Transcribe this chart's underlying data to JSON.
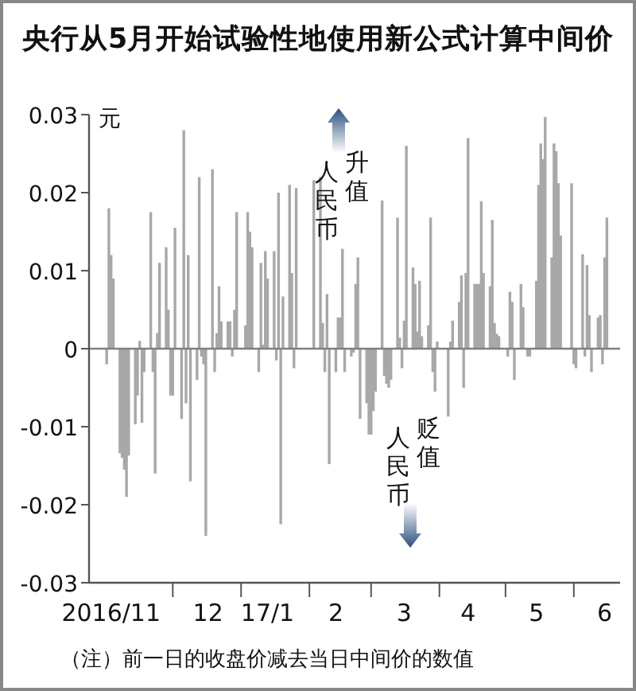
{
  "chart_data": {
    "type": "bar",
    "title": "央行从5月开始试验性地使用新公式计算中间价",
    "ylabel": "元",
    "annotations": [
      "人民币升值",
      "人民币贬值",
      "（注）前一日的收盘价减去当日中间价的数值"
    ],
    "x": [
      "2016-11-01",
      "2016-11-02",
      "2016-11-03",
      "2016-11-04",
      "2016-11-07",
      "2016-11-08",
      "2016-11-09",
      "2016-11-10",
      "2016-11-11",
      "2016-11-14",
      "2016-11-15",
      "2016-11-16",
      "2016-11-17",
      "2016-11-18",
      "2016-11-21",
      "2016-11-22",
      "2016-11-23",
      "2016-11-24",
      "2016-11-25",
      "2016-11-28",
      "2016-11-29",
      "2016-11-30",
      "2016-12-01",
      "2016-12-02",
      "2016-12-05",
      "2016-12-06",
      "2016-12-07",
      "2016-12-08",
      "2016-12-09",
      "2016-12-12",
      "2016-12-13",
      "2016-12-14",
      "2016-12-15",
      "2016-12-16",
      "2016-12-19",
      "2016-12-20",
      "2016-12-21",
      "2016-12-22",
      "2016-12-23",
      "2016-12-26",
      "2016-12-27",
      "2016-12-28",
      "2016-12-29",
      "2016-12-30",
      "2017-01-03",
      "2017-01-04",
      "2017-01-05",
      "2017-01-06",
      "2017-01-09",
      "2017-01-10",
      "2017-01-11",
      "2017-01-12",
      "2017-01-13",
      "2017-01-16",
      "2017-01-17",
      "2017-01-18",
      "2017-01-19",
      "2017-01-20",
      "2017-01-23",
      "2017-01-24",
      "2017-01-25",
      "2017-01-26",
      "2017-02-03",
      "2017-02-06",
      "2017-02-07",
      "2017-02-08",
      "2017-02-09",
      "2017-02-10",
      "2017-02-13",
      "2017-02-14",
      "2017-02-15",
      "2017-02-16",
      "2017-02-17",
      "2017-02-20",
      "2017-02-21",
      "2017-02-22",
      "2017-02-23",
      "2017-02-24",
      "2017-02-27",
      "2017-02-28",
      "2017-03-01",
      "2017-03-02",
      "2017-03-03",
      "2017-03-06",
      "2017-03-07",
      "2017-03-08",
      "2017-03-09",
      "2017-03-10",
      "2017-03-13",
      "2017-03-14",
      "2017-03-15",
      "2017-03-16",
      "2017-03-17",
      "2017-03-20",
      "2017-03-21",
      "2017-03-22",
      "2017-03-23",
      "2017-03-24",
      "2017-03-27",
      "2017-03-28",
      "2017-03-29",
      "2017-03-30",
      "2017-03-31",
      "2017-04-05",
      "2017-04-06",
      "2017-04-07",
      "2017-04-10",
      "2017-04-11",
      "2017-04-12",
      "2017-04-13",
      "2017-04-14",
      "2017-04-17",
      "2017-04-18",
      "2017-04-19",
      "2017-04-20",
      "2017-04-21",
      "2017-04-24",
      "2017-04-25",
      "2017-04-26",
      "2017-04-27",
      "2017-04-28",
      "2017-05-02",
      "2017-05-03",
      "2017-05-04",
      "2017-05-05",
      "2017-05-08",
      "2017-05-09",
      "2017-05-10",
      "2017-05-11",
      "2017-05-12",
      "2017-05-15",
      "2017-05-16",
      "2017-05-17",
      "2017-05-18",
      "2017-05-19",
      "2017-05-22",
      "2017-05-23",
      "2017-05-24",
      "2017-05-25",
      "2017-05-26",
      "2017-05-31",
      "2017-06-01",
      "2017-06-02",
      "2017-06-05",
      "2017-06-06",
      "2017-06-07",
      "2017-06-08",
      "2017-06-09",
      "2017-06-12",
      "2017-06-13",
      "2017-06-14",
      "2017-06-15",
      "2017-06-16"
    ],
    "values": [
      -0.002,
      0.018,
      0.012,
      0.009,
      -0.0134,
      -0.014,
      -0.0155,
      -0.019,
      -0.0137,
      -0.0097,
      -0.006,
      0.001,
      -0.0095,
      -0.003,
      0.0175,
      -0.003,
      -0.016,
      0.002,
      0.011,
      0.013,
      0.005,
      -0.006,
      -0.006,
      0.0155,
      -0.009,
      0.028,
      -0.007,
      0.012,
      -0.017,
      -0.004,
      0.022,
      -0.001,
      -0.002,
      -0.024,
      0.023,
      -0.003,
      0.002,
      0.008,
      0.0035,
      0.0035,
      0.0035,
      -0.001,
      0.005,
      0.0175,
      0.003,
      0.0175,
      0.015,
      0.013,
      -0.003,
      0.011,
      0.0005,
      0.0125,
      0.009,
      0.0125,
      -0.0015,
      0.02,
      -0.0225,
      0.0067,
      0.021,
      0.0097,
      -0.0025,
      0.0206,
      0.0216,
      0.022,
      0.0033,
      -0.003,
      0.007,
      -0.0148,
      -0.003,
      0.004,
      0.004,
      0.0128,
      -0.003,
      -0.001,
      -0.0005,
      0.0083,
      0.0117,
      -0.009,
      -0.007,
      -0.011,
      -0.011,
      -0.008,
      -0.0055,
      0.019,
      -0.0035,
      -0.0045,
      -0.005,
      -0.004,
      0.0168,
      0.0014,
      -0.0025,
      0.0036,
      0.026,
      0.0104,
      0.0083,
      0.0022,
      0.0087,
      0.0016,
      0.003,
      0.0168,
      -0.003,
      -0.0055,
      0.0009,
      -0.0087,
      0.0009,
      0.0036,
      0.006,
      0.0094,
      -0.005,
      0.0097,
      0.027,
      0.0083,
      0.0083,
      0.0083,
      0.0189,
      0.0097,
      0.008,
      0.0165,
      0.0033,
      0.0019,
      0.0016,
      -0.001,
      0.0073,
      0.006,
      -0.004,
      0.0083,
      0.0053,
      null,
      -0.001,
      -0.001,
      0.0087,
      0.021,
      0.0263,
      0.0243,
      0.0297,
      0.0117,
      0.0263,
      0.0253,
      0.0212,
      0.0145,
      0.0212,
      -0.002,
      -0.0025,
      0.0121,
      -0.001,
      0.0107,
      0.0043,
      -0.003,
      0.004,
      0.0043,
      -0.002,
      0.0117,
      0.0168
    ],
    "color": "#a8a8a8",
    "xlim": [
      "2016-10-24",
      "2017-06-22"
    ],
    "xticks": [
      {
        "value": "2016-11-03",
        "label": "2016/11"
      },
      {
        "value": "2016-12-01",
        "label": null
      },
      {
        "value": "2016-12-17",
        "label": "12"
      },
      {
        "value": "2017-01-01",
        "label": null
      },
      {
        "value": "2017-01-13",
        "label": "17/1"
      },
      {
        "value": "2017-02-01",
        "label": null
      },
      {
        "value": "2017-02-13",
        "label": "2"
      },
      {
        "value": "2017-03-01",
        "label": null
      },
      {
        "value": "2017-03-16",
        "label": "3"
      },
      {
        "value": "2017-04-01",
        "label": null
      },
      {
        "value": "2017-04-14",
        "label": "4"
      },
      {
        "value": "2017-05-01",
        "label": null
      },
      {
        "value": "2017-05-15",
        "label": "5"
      },
      {
        "value": "2017-06-01",
        "label": null
      },
      {
        "value": "2017-06-15",
        "label": "6"
      }
    ],
    "ylim": [
      -0.03,
      0.03
    ],
    "yticks": [
      -0.03,
      -0.02,
      -0.01,
      0,
      0.01,
      0.02,
      0.03
    ],
    "ref_lines": [
      {
        "axis": "y",
        "value": 0,
        "color": "#808080"
      }
    ],
    "grid": false
  }
}
